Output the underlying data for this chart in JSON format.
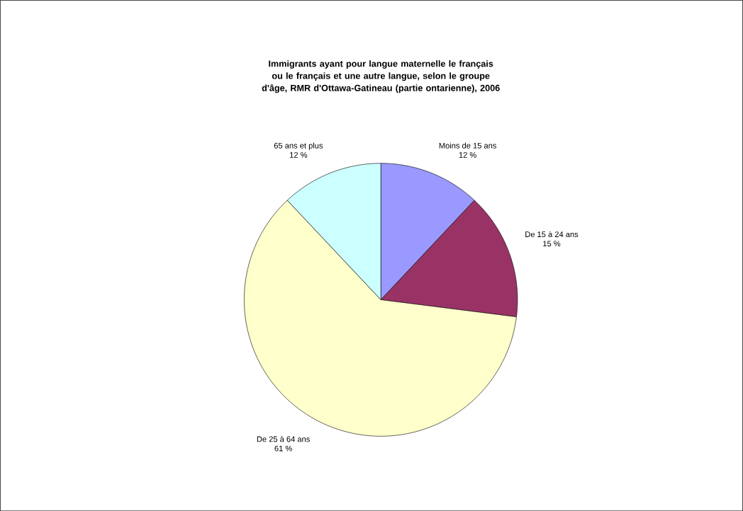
{
  "chart_data": {
    "type": "pie",
    "title": "Immigrants ayant pour langue maternelle le français ou le français et une autre langue, selon le groupe d'âge, RMR d'Ottawa-Gatineau (partie ontarienne), 2006",
    "categories": [
      "Moins de 15 ans",
      "De 15 à 24 ans",
      "De 25 à 64 ans",
      "65 ans et plus"
    ],
    "values": [
      12,
      15,
      61,
      12
    ],
    "value_labels": [
      "12 %",
      "15 %",
      "61 %",
      "12 %"
    ],
    "colors": [
      "#9999ff",
      "#993366",
      "#ffffcc",
      "#ccffff"
    ]
  }
}
